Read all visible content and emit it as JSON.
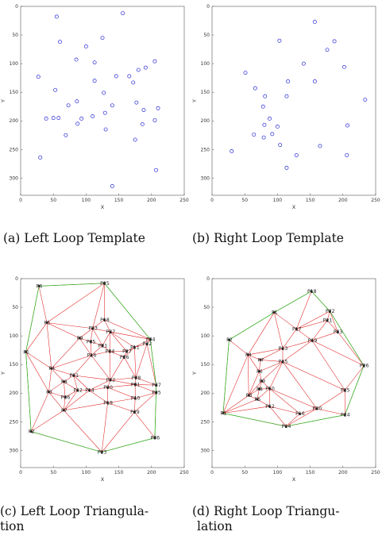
{
  "captions": {
    "a": "(a) Left Loop Template",
    "b": "(b) Right Loop Template",
    "c": "(c) Left Loop Triangula-",
    "c2": "tion",
    "d": "(d) Right Loop Triangu-",
    "d2": "lation"
  },
  "colors": {
    "marker": "#2a2ad8",
    "tri_edge": "#e02020",
    "hull_edge": "#22bb22",
    "special_edge": "#2a2ad8"
  },
  "chart_data": [
    {
      "id": "a",
      "type": "scatter",
      "xlabel": "X",
      "ylabel": "Y",
      "xlim": [
        0,
        250
      ],
      "ylim": [
        0,
        330
      ],
      "y_inverted": true,
      "xticks": [
        0,
        50,
        100,
        150,
        200,
        250
      ],
      "yticks": [
        0,
        50,
        100,
        150,
        200,
        250,
        300
      ],
      "points": [
        [
          55,
          18
        ],
        [
          156,
          12
        ],
        [
          60,
          62
        ],
        [
          125,
          55
        ],
        [
          100,
          70
        ],
        [
          113,
          98
        ],
        [
          85,
          93
        ],
        [
          205,
          96
        ],
        [
          191,
          107
        ],
        [
          180,
          111
        ],
        [
          27,
          123
        ],
        [
          166,
          122
        ],
        [
          146,
          122
        ],
        [
          172,
          133
        ],
        [
          113,
          130
        ],
        [
          53,
          146
        ],
        [
          127,
          151
        ],
        [
          86,
          166
        ],
        [
          177,
          168
        ],
        [
          73,
          173
        ],
        [
          140,
          173
        ],
        [
          210,
          178
        ],
        [
          188,
          181
        ],
        [
          58,
          195
        ],
        [
          39,
          196
        ],
        [
          50,
          195
        ],
        [
          93,
          196
        ],
        [
          110,
          192
        ],
        [
          129,
          186
        ],
        [
          87,
          205
        ],
        [
          205,
          199
        ],
        [
          186,
          206
        ],
        [
          69,
          225
        ],
        [
          130,
          215
        ],
        [
          175,
          233
        ],
        [
          30,
          264
        ],
        [
          207,
          286
        ],
        [
          140,
          314
        ]
      ]
    },
    {
      "id": "b",
      "type": "scatter",
      "xlabel": "X",
      "ylabel": "Y",
      "xlim": [
        0,
        250
      ],
      "ylim": [
        0,
        330
      ],
      "y_inverted": true,
      "xticks": [
        0,
        50,
        100,
        150,
        200,
        250
      ],
      "yticks": [
        0,
        50,
        100,
        150,
        200,
        250,
        300
      ],
      "points": [
        [
          157,
          27
        ],
        [
          103,
          60
        ],
        [
          187,
          61
        ],
        [
          176,
          76
        ],
        [
          51,
          116
        ],
        [
          140,
          100
        ],
        [
          202,
          106
        ],
        [
          116,
          131
        ],
        [
          66,
          143
        ],
        [
          157,
          131
        ],
        [
          114,
          157
        ],
        [
          81,
          157
        ],
        [
          234,
          163
        ],
        [
          78,
          175
        ],
        [
          88,
          196
        ],
        [
          100,
          210
        ],
        [
          80,
          207
        ],
        [
          92,
          223
        ],
        [
          207,
          208
        ],
        [
          64,
          224
        ],
        [
          104,
          242
        ],
        [
          79,
          229
        ],
        [
          165,
          244
        ],
        [
          30,
          253
        ],
        [
          129,
          260
        ],
        [
          206,
          260
        ],
        [
          114,
          282
        ]
      ]
    },
    {
      "id": "c",
      "type": "scatter",
      "xlabel": "X",
      "ylabel": "Y",
      "xlim": [
        0,
        250
      ],
      "ylim": [
        0,
        330
      ],
      "y_inverted": true,
      "xticks": [
        0,
        50,
        100,
        150,
        200,
        250
      ],
      "yticks": [
        0,
        50,
        100,
        150,
        200,
        250,
        300
      ],
      "point_labels": [
        {
          "label": "P6",
          "x": 28,
          "y": 13
        },
        {
          "label": "P25",
          "x": 128,
          "y": 8
        },
        {
          "label": "P5",
          "x": 40,
          "y": 77
        },
        {
          "label": "P18",
          "x": 128,
          "y": 72
        },
        {
          "label": "P33",
          "x": 110,
          "y": 87
        },
        {
          "label": "P37",
          "x": 137,
          "y": 93
        },
        {
          "label": "P34",
          "x": 198,
          "y": 106
        },
        {
          "label": "P9",
          "x": 90,
          "y": 104
        },
        {
          "label": "P35",
          "x": 107,
          "y": 110
        },
        {
          "label": "P22",
          "x": 193,
          "y": 114
        },
        {
          "label": "P21",
          "x": 125,
          "y": 117
        },
        {
          "label": "P11",
          "x": 174,
          "y": 120
        },
        {
          "label": "P24",
          "x": 136,
          "y": 127
        },
        {
          "label": "P27",
          "x": 162,
          "y": 127
        },
        {
          "label": "P26",
          "x": 158,
          "y": 137
        },
        {
          "label": "P16",
          "x": 108,
          "y": 134
        },
        {
          "label": "P1",
          "x": 8,
          "y": 128
        },
        {
          "label": "P4",
          "x": 47,
          "y": 157
        },
        {
          "label": "P31",
          "x": 81,
          "y": 169
        },
        {
          "label": "P32",
          "x": 137,
          "y": 177
        },
        {
          "label": "P28",
          "x": 176,
          "y": 173
        },
        {
          "label": "P8",
          "x": 66,
          "y": 180
        },
        {
          "label": "P31",
          "x": 175,
          "y": 185
        },
        {
          "label": "P37",
          "x": 207,
          "y": 186
        },
        {
          "label": "P20",
          "x": 133,
          "y": 190
        },
        {
          "label": "P12",
          "x": 87,
          "y": 195
        },
        {
          "label": "P14",
          "x": 105,
          "y": 195
        },
        {
          "label": "P3",
          "x": 43,
          "y": 198
        },
        {
          "label": "P35",
          "x": 207,
          "y": 199
        },
        {
          "label": "P36",
          "x": 68,
          "y": 207
        },
        {
          "label": "P10",
          "x": 175,
          "y": 209
        },
        {
          "label": "P19",
          "x": 133,
          "y": 217
        },
        {
          "label": "P7",
          "x": 66,
          "y": 230
        },
        {
          "label": "P29",
          "x": 174,
          "y": 233
        },
        {
          "label": "P2",
          "x": 16,
          "y": 267
        },
        {
          "label": "P36",
          "x": 205,
          "y": 278
        },
        {
          "label": "P23",
          "x": 124,
          "y": 303
        }
      ]
    },
    {
      "id": "d",
      "type": "scatter",
      "xlabel": "X",
      "ylabel": "Y",
      "xlim": [
        0,
        250
      ],
      "ylim": [
        0,
        330
      ],
      "y_inverted": true,
      "xticks": [
        0,
        50,
        100,
        150,
        200,
        250
      ],
      "yticks": [
        0,
        50,
        100,
        150,
        200,
        250,
        300
      ],
      "point_labels": [
        {
          "label": "P18",
          "x": 152,
          "y": 22
        },
        {
          "label": "P1",
          "x": 95,
          "y": 59
        },
        {
          "label": "P22",
          "x": 180,
          "y": 57
        },
        {
          "label": "P21",
          "x": 176,
          "y": 73
        },
        {
          "label": "P17",
          "x": 129,
          "y": 88
        },
        {
          "label": "P23",
          "x": 192,
          "y": 93
        },
        {
          "label": "P19",
          "x": 153,
          "y": 108
        },
        {
          "label": "P2",
          "x": 26,
          "y": 107
        },
        {
          "label": "P13",
          "x": 108,
          "y": 122
        },
        {
          "label": "P4",
          "x": 55,
          "y": 133
        },
        {
          "label": "P7",
          "x": 74,
          "y": 142
        },
        {
          "label": "P15",
          "x": 108,
          "y": 145
        },
        {
          "label": "P26",
          "x": 232,
          "y": 152
        },
        {
          "label": "P6",
          "x": 72,
          "y": 162
        },
        {
          "label": "P9",
          "x": 76,
          "y": 179
        },
        {
          "label": "P10",
          "x": 88,
          "y": 192
        },
        {
          "label": "P8",
          "x": 72,
          "y": 193
        },
        {
          "label": "P25",
          "x": 203,
          "y": 195
        },
        {
          "label": "P3",
          "x": 56,
          "y": 204
        },
        {
          "label": "P5",
          "x": 69,
          "y": 211
        },
        {
          "label": "P12",
          "x": 88,
          "y": 223
        },
        {
          "label": "P20",
          "x": 160,
          "y": 227
        },
        {
          "label": "P16",
          "x": 134,
          "y": 236
        },
        {
          "label": "P24",
          "x": 203,
          "y": 238
        },
        {
          "label": "P1",
          "x": 17,
          "y": 235
        },
        {
          "label": "P14",
          "x": 113,
          "y": 258
        }
      ]
    }
  ]
}
